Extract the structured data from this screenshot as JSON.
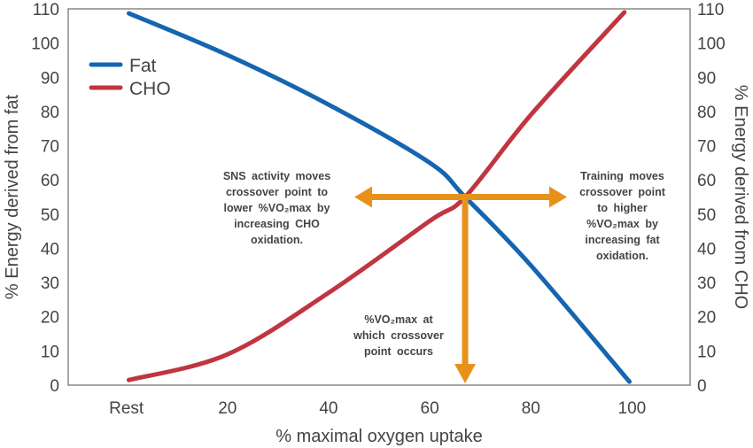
{
  "chart_data": {
    "type": "line",
    "xlabel": "% maximal oxygen uptake",
    "ylabel_left": "% Energy derived from fat",
    "ylabel_right": "% Energy derived from CHO",
    "x_ticks": [
      {
        "value": 0,
        "label": "Rest"
      },
      {
        "value": 20,
        "label": "20"
      },
      {
        "value": 40,
        "label": "40"
      },
      {
        "value": 60,
        "label": "60"
      },
      {
        "value": 80,
        "label": "80"
      },
      {
        "value": 100,
        "label": "100"
      }
    ],
    "y_ticks": [
      "0",
      "10",
      "20",
      "30",
      "40",
      "50",
      "60",
      "70",
      "80",
      "90",
      "100",
      "110"
    ],
    "xlim": [
      -11.5,
      111.5
    ],
    "ylim": [
      0,
      110
    ],
    "grid": false,
    "legend_position": "top-left",
    "series": [
      {
        "name": "Fat",
        "color": "#1565B0",
        "x": [
          0.5,
          20,
          40,
          60,
          67,
          80,
          99.5
        ],
        "y": [
          108.7,
          96.5,
          82,
          65,
          55,
          35,
          1
        ]
      },
      {
        "name": "CHO",
        "color": "#C0353F",
        "x": [
          0.5,
          20,
          40,
          60,
          67,
          80,
          98.5
        ],
        "y": [
          1.5,
          9,
          27,
          48,
          55,
          79,
          109
        ]
      }
    ],
    "crossover": {
      "x": 67,
      "y": 55
    },
    "arrow_color": "#E8911A",
    "annotations": {
      "left": [
        "SNS activity moves",
        "crossover point to",
        "lower %VO₂max by",
        "increasing CHO",
        "oxidation."
      ],
      "right": [
        "Training moves",
        "crossover point",
        "to higher",
        "%VO₂max by",
        "increasing fat",
        "oxidation."
      ],
      "bottom": [
        "%VO₂max at",
        "which crossover",
        "point occurs"
      ]
    }
  }
}
